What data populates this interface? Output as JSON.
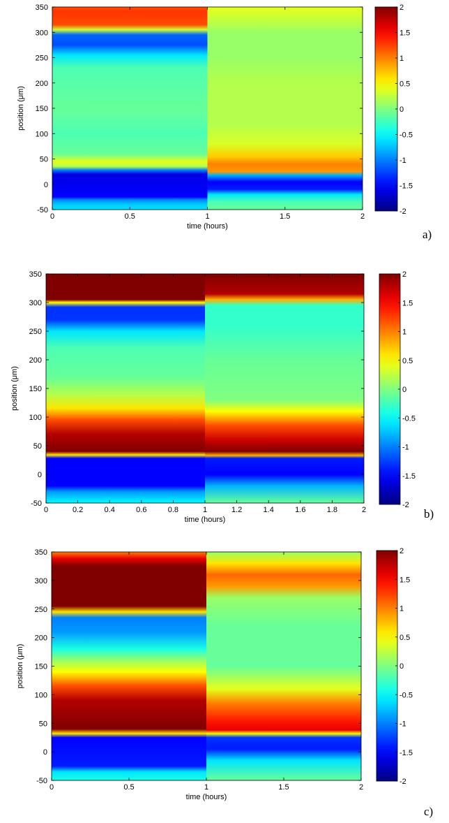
{
  "chart_data": [
    {
      "type": "heatmap",
      "panel_label": "a)",
      "xlabel": "time (hours)",
      "ylabel": "position (μm)",
      "xlim": [
        0,
        2
      ],
      "ylim": [
        -50,
        350
      ],
      "x_ticks": [
        "0",
        "0.5",
        "1",
        "1.5",
        "2"
      ],
      "y_ticks": [
        "-50",
        "0",
        "50",
        "100",
        "150",
        "200",
        "250",
        "300",
        "350"
      ],
      "colorbar": {
        "range": [
          -2,
          2
        ],
        "ticks": [
          "2",
          "1.5",
          "1",
          "0.5",
          "0",
          "-0.5",
          "-1",
          "-1.5",
          "-2"
        ],
        "colormap": "jet"
      },
      "regions": [
        {
          "t_start": 0,
          "t_end": 1,
          "profile": [
            {
              "y": 350,
              "v": 1.2
            },
            {
              "y": 340,
              "v": 1.3
            },
            {
              "y": 315,
              "v": 1.2
            },
            {
              "y": 305,
              "v": 0.3
            },
            {
              "y": 295,
              "v": -1.1
            },
            {
              "y": 275,
              "v": -1.2
            },
            {
              "y": 255,
              "v": -0.6
            },
            {
              "y": 230,
              "v": -0.2
            },
            {
              "y": 150,
              "v": -0.1
            },
            {
              "y": 100,
              "v": -0.2
            },
            {
              "y": 60,
              "v": -0.1
            },
            {
              "y": 45,
              "v": 0.4
            },
            {
              "y": 35,
              "v": 0.2
            },
            {
              "y": 28,
              "v": -1.0
            },
            {
              "y": 20,
              "v": -1.6
            },
            {
              "y": -25,
              "v": -1.5
            },
            {
              "y": -30,
              "v": -1.0
            },
            {
              "y": -40,
              "v": -0.7
            },
            {
              "y": -50,
              "v": -0.6
            }
          ]
        },
        {
          "t_start": 1,
          "t_end": 2,
          "profile": [
            {
              "y": 350,
              "v": 0.4
            },
            {
              "y": 330,
              "v": 0.3
            },
            {
              "y": 300,
              "v": 0.1
            },
            {
              "y": 250,
              "v": 0.1
            },
            {
              "y": 200,
              "v": 0.2
            },
            {
              "y": 120,
              "v": 0.2
            },
            {
              "y": 80,
              "v": 0.35
            },
            {
              "y": 55,
              "v": 0.7
            },
            {
              "y": 40,
              "v": 1.0
            },
            {
              "y": 25,
              "v": 0.9
            },
            {
              "y": 18,
              "v": -0.8
            },
            {
              "y": 5,
              "v": -1.5
            },
            {
              "y": -10,
              "v": -1.4
            },
            {
              "y": -20,
              "v": -0.6
            },
            {
              "y": -35,
              "v": -0.2
            },
            {
              "y": -50,
              "v": -0.1
            }
          ]
        }
      ]
    },
    {
      "type": "heatmap",
      "panel_label": "b)",
      "xlabel": "time (hours)",
      "ylabel": "position (μm)",
      "xlim": [
        0,
        2
      ],
      "ylim": [
        -50,
        350
      ],
      "x_ticks": [
        "0",
        "0.2",
        "0.4",
        "0.6",
        "0.8",
        "1",
        "1.2",
        "1.4",
        "1.6",
        "1.8",
        "2"
      ],
      "y_ticks": [
        "-50",
        "0",
        "50",
        "100",
        "150",
        "200",
        "250",
        "300",
        "350"
      ],
      "colorbar": {
        "range": [
          -2,
          2
        ],
        "ticks": [
          "2",
          "1.5",
          "1",
          "0.5",
          "0",
          "-0.5",
          "-1",
          "-1.5",
          "-2"
        ],
        "colormap": "jet"
      },
      "regions": [
        {
          "t_start": 0,
          "t_end": 1,
          "profile": [
            {
              "y": 350,
              "v": 2.0
            },
            {
              "y": 305,
              "v": 2.0
            },
            {
              "y": 300,
              "v": 0.5
            },
            {
              "y": 292,
              "v": -1.3
            },
            {
              "y": 270,
              "v": -1.3
            },
            {
              "y": 250,
              "v": -0.6
            },
            {
              "y": 220,
              "v": -0.2
            },
            {
              "y": 170,
              "v": -0.1
            },
            {
              "y": 140,
              "v": 0.2
            },
            {
              "y": 115,
              "v": 0.6
            },
            {
              "y": 95,
              "v": 1.2
            },
            {
              "y": 70,
              "v": 1.8
            },
            {
              "y": 40,
              "v": 2.0
            },
            {
              "y": 34,
              "v": 0.6
            },
            {
              "y": 28,
              "v": -1.5
            },
            {
              "y": -20,
              "v": -1.5
            },
            {
              "y": -30,
              "v": -0.9
            },
            {
              "y": -50,
              "v": -0.5
            }
          ]
        },
        {
          "t_start": 1,
          "t_end": 2,
          "profile": [
            {
              "y": 350,
              "v": 2.0
            },
            {
              "y": 315,
              "v": 1.8
            },
            {
              "y": 305,
              "v": 0.8
            },
            {
              "y": 295,
              "v": -0.3
            },
            {
              "y": 260,
              "v": -0.3
            },
            {
              "y": 200,
              "v": -0.1
            },
            {
              "y": 130,
              "v": 0.0
            },
            {
              "y": 110,
              "v": 0.5
            },
            {
              "y": 85,
              "v": 1.2
            },
            {
              "y": 60,
              "v": 1.7
            },
            {
              "y": 40,
              "v": 2.0
            },
            {
              "y": 33,
              "v": 0.8
            },
            {
              "y": 28,
              "v": -1.4
            },
            {
              "y": 0,
              "v": -1.5
            },
            {
              "y": -20,
              "v": -0.8
            },
            {
              "y": -50,
              "v": -0.1
            }
          ]
        }
      ]
    },
    {
      "type": "heatmap",
      "panel_label": "c)",
      "xlabel": "time (hours)",
      "ylabel": "position (μm)",
      "xlim": [
        0,
        2
      ],
      "ylim": [
        -50,
        350
      ],
      "x_ticks": [
        "0",
        "0.5",
        "1",
        "1.5",
        "2"
      ],
      "y_ticks": [
        "-50",
        "0",
        "50",
        "100",
        "150",
        "200",
        "250",
        "300",
        "350"
      ],
      "colorbar": {
        "range": [
          -2,
          2
        ],
        "ticks": [
          "2",
          "1.5",
          "1",
          "0.5",
          "0",
          "-0.5",
          "-1",
          "-1.5",
          "-2"
        ],
        "colormap": "jet"
      },
      "regions": [
        {
          "t_start": 0,
          "t_end": 1,
          "profile": [
            {
              "y": 350,
              "v": 1.0
            },
            {
              "y": 338,
              "v": 1.6
            },
            {
              "y": 325,
              "v": 2.0
            },
            {
              "y": 255,
              "v": 2.0
            },
            {
              "y": 245,
              "v": 0.6
            },
            {
              "y": 235,
              "v": -1.0
            },
            {
              "y": 210,
              "v": -0.9
            },
            {
              "y": 180,
              "v": -0.4
            },
            {
              "y": 160,
              "v": 0.1
            },
            {
              "y": 140,
              "v": 0.5
            },
            {
              "y": 115,
              "v": 1.2
            },
            {
              "y": 90,
              "v": 1.8
            },
            {
              "y": 40,
              "v": 2.0
            },
            {
              "y": 32,
              "v": 0.6
            },
            {
              "y": 25,
              "v": -1.5
            },
            {
              "y": -25,
              "v": -1.4
            },
            {
              "y": -35,
              "v": -0.6
            },
            {
              "y": -50,
              "v": -0.4
            }
          ]
        },
        {
          "t_start": 1,
          "t_end": 2,
          "profile": [
            {
              "y": 350,
              "v": 0.1
            },
            {
              "y": 330,
              "v": 0.6
            },
            {
              "y": 310,
              "v": 1.1
            },
            {
              "y": 290,
              "v": 0.9
            },
            {
              "y": 270,
              "v": 0.1
            },
            {
              "y": 220,
              "v": -0.1
            },
            {
              "y": 150,
              "v": -0.1
            },
            {
              "y": 110,
              "v": 0.4
            },
            {
              "y": 85,
              "v": 1.0
            },
            {
              "y": 55,
              "v": 1.4
            },
            {
              "y": 38,
              "v": 1.6
            },
            {
              "y": 32,
              "v": 0.5
            },
            {
              "y": 25,
              "v": -1.3
            },
            {
              "y": 5,
              "v": -1.4
            },
            {
              "y": -15,
              "v": -0.6
            },
            {
              "y": -50,
              "v": -0.1
            }
          ]
        }
      ]
    }
  ]
}
